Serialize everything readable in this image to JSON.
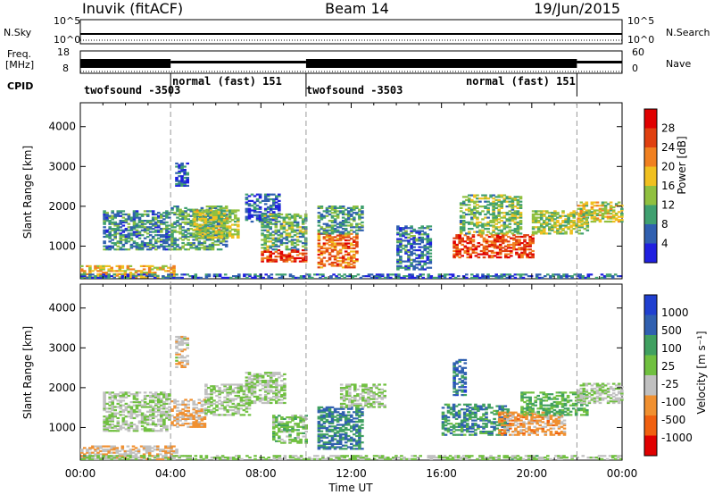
{
  "header": {
    "station": "Inuvik (fitACF)",
    "beam": "Beam 14",
    "date": "19/Jun/2015"
  },
  "summary_panels": {
    "nsky_label": "N.Sky",
    "nsearch_label": "N.Search",
    "noise_ticks": [
      "10^5",
      "10^0"
    ],
    "freq_label_top": "Freq.",
    "freq_label_unit": "[MHz]",
    "freq_ticks": [
      "18",
      "8"
    ],
    "nave_ticks": [
      "60",
      "0"
    ],
    "nave_label": "Nave",
    "cpid_label": "CPID"
  },
  "cpid_segments": [
    {
      "label": "twofsound -3503",
      "start_h": 0.0
    },
    {
      "label": "normal (fast) 151",
      "start_h": 4.0
    },
    {
      "label": "twofsound -3503",
      "start_h": 10.0
    },
    {
      "label": "normal (fast) 151",
      "start_h": 22.0
    }
  ],
  "colors": {
    "power_scale": [
      "#2020e0",
      "#3060b0",
      "#40a070",
      "#90c040",
      "#f0c020",
      "#f08020",
      "#e04010",
      "#e00000"
    ],
    "velocity_scale": [
      "#e00000",
      "#f06010",
      "#f09030",
      "#c0c0c0",
      "#70c040",
      "#40a060",
      "#3060b0",
      "#2040d0"
    ]
  },
  "chart_data": [
    {
      "type": "heatmap",
      "name": "power",
      "xlabel": "",
      "ylabel": "Slant Range [km]",
      "xlim": [
        0,
        24
      ],
      "ylim": [
        180,
        4600
      ],
      "yticks": [
        1000,
        2000,
        3000,
        4000
      ],
      "colorbar_label": "Power [dB]",
      "colorbar_ticks": [
        "4",
        "8",
        "12",
        "16",
        "20",
        "24",
        "28"
      ],
      "colorbar_range": [
        0,
        30
      ],
      "regions": [
        {
          "t0": 0.0,
          "t1": 4.2,
          "r0": 200,
          "r1": 520,
          "v": 17
        },
        {
          "t0": 1.0,
          "t1": 4.0,
          "r0": 900,
          "r1": 1900,
          "v": 8
        },
        {
          "t0": 4.0,
          "t1": 6.5,
          "r0": 900,
          "r1": 2000,
          "v": 10
        },
        {
          "t0": 4.2,
          "t1": 4.8,
          "r0": 2500,
          "r1": 3100,
          "v": 5
        },
        {
          "t0": 5.0,
          "t1": 7.0,
          "r0": 1200,
          "r1": 1900,
          "v": 14
        },
        {
          "t0": 7.3,
          "t1": 8.8,
          "r0": 1600,
          "r1": 2300,
          "v": 5
        },
        {
          "t0": 8.0,
          "t1": 10.0,
          "r0": 600,
          "r1": 900,
          "v": 25
        },
        {
          "t0": 8.0,
          "t1": 10.0,
          "r0": 900,
          "r1": 1800,
          "v": 11
        },
        {
          "t0": 10.5,
          "t1": 12.2,
          "r0": 450,
          "r1": 1300,
          "v": 22
        },
        {
          "t0": 10.5,
          "t1": 12.5,
          "r0": 1300,
          "r1": 2000,
          "v": 9
        },
        {
          "t0": 14.0,
          "t1": 15.5,
          "r0": 400,
          "r1": 1500,
          "v": 7
        },
        {
          "t0": 16.5,
          "t1": 20.0,
          "r0": 700,
          "r1": 1300,
          "v": 24
        },
        {
          "t0": 16.8,
          "t1": 19.5,
          "r0": 1300,
          "r1": 2300,
          "v": 12
        },
        {
          "t0": 20.0,
          "t1": 22.5,
          "r0": 1300,
          "r1": 1900,
          "v": 13
        },
        {
          "t0": 22.0,
          "t1": 24.0,
          "r0": 1600,
          "r1": 2100,
          "v": 15
        },
        {
          "t0": 0.0,
          "t1": 24.0,
          "r0": 190,
          "r1": 280,
          "v": 6
        }
      ]
    },
    {
      "type": "heatmap",
      "name": "velocity",
      "xlabel": "Time UT",
      "ylabel": "Slant Range [km]",
      "xlim": [
        0,
        24
      ],
      "ylim": [
        180,
        4600
      ],
      "xticks": [
        "00:00",
        "04:00",
        "08:00",
        "12:00",
        "16:00",
        "20:00",
        "00:00"
      ],
      "yticks": [
        1000,
        2000,
        3000,
        4000
      ],
      "colorbar_label": "Velocity [m s⁻¹]",
      "colorbar_ticks": [
        "-1000",
        "-500",
        "-100",
        "-25",
        "25",
        "100",
        "500",
        "1000"
      ],
      "colorbar_range": [
        -1200,
        1200
      ],
      "regions": [
        {
          "t0": 0.0,
          "t1": 4.3,
          "r0": 190,
          "r1": 520,
          "v": -300
        },
        {
          "t0": 1.0,
          "t1": 4.0,
          "r0": 900,
          "r1": 1900,
          "v": 0
        },
        {
          "t0": 4.0,
          "t1": 5.5,
          "r0": 1000,
          "r1": 1700,
          "v": -300
        },
        {
          "t0": 4.2,
          "t1": 4.8,
          "r0": 2500,
          "r1": 3300,
          "v": -200
        },
        {
          "t0": 5.5,
          "t1": 7.5,
          "r0": 1300,
          "r1": 2100,
          "v": 0
        },
        {
          "t0": 7.3,
          "t1": 9.0,
          "r0": 1600,
          "r1": 2400,
          "v": 0
        },
        {
          "t0": 8.5,
          "t1": 10.0,
          "r0": 600,
          "r1": 1300,
          "v": 150
        },
        {
          "t0": 10.5,
          "t1": 12.5,
          "r0": 450,
          "r1": 1500,
          "v": 600
        },
        {
          "t0": 11.5,
          "t1": 13.5,
          "r0": 1500,
          "r1": 2100,
          "v": 0
        },
        {
          "t0": 16.0,
          "t1": 19.0,
          "r0": 800,
          "r1": 1600,
          "v": 500
        },
        {
          "t0": 16.5,
          "t1": 17.0,
          "r0": 1800,
          "r1": 2700,
          "v": 700
        },
        {
          "t0": 18.5,
          "t1": 21.5,
          "r0": 800,
          "r1": 1400,
          "v": -400
        },
        {
          "t0": 19.5,
          "t1": 22.5,
          "r0": 1300,
          "r1": 1900,
          "v": 300
        },
        {
          "t0": 22.0,
          "t1": 24.0,
          "r0": 1600,
          "r1": 2100,
          "v": 0
        },
        {
          "t0": 0.0,
          "t1": 24.0,
          "r0": 190,
          "r1": 280,
          "v": 60
        }
      ]
    }
  ]
}
